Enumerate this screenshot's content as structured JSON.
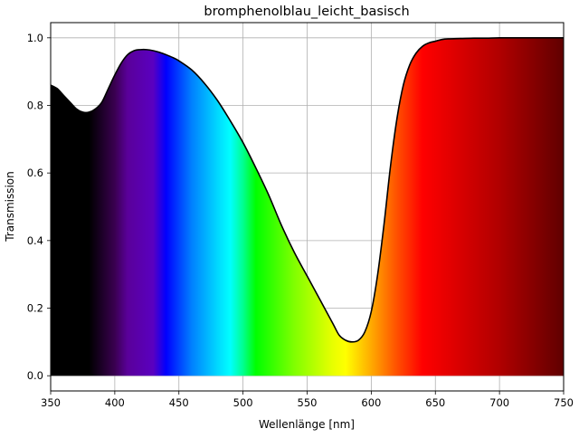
{
  "chart_data": {
    "type": "area",
    "title": "bromphenolblau_leicht_basisch",
    "xlabel": "Wellenlänge [nm]",
    "ylabel": "Transmission",
    "xlim": [
      350,
      750
    ],
    "ylim": [
      -0.045,
      1.045
    ],
    "xticks": [
      350,
      400,
      450,
      500,
      550,
      600,
      650,
      700,
      750
    ],
    "yticks": [
      0.0,
      0.2,
      0.4,
      0.6,
      0.8,
      1.0
    ],
    "xtick_labels": [
      "350",
      "400",
      "450",
      "500",
      "550",
      "600",
      "650",
      "700",
      "750"
    ],
    "ytick_labels": [
      "0.0",
      "0.2",
      "0.4",
      "0.6",
      "0.8",
      "1.0"
    ],
    "grid": true,
    "fill": "visible-spectrum gradient under curve",
    "line_color": "#000000",
    "series": [
      {
        "x": [
          350,
          355,
          360,
          365,
          370,
          375,
          380,
          385,
          390,
          395,
          400,
          405,
          410,
          415,
          420,
          425,
          430,
          435,
          440,
          445,
          450,
          460,
          470,
          480,
          490,
          500,
          510,
          520,
          530,
          540,
          550,
          560,
          570,
          575,
          580,
          585,
          590,
          595,
          600,
          605,
          610,
          615,
          620,
          625,
          630,
          635,
          640,
          645,
          650,
          655,
          660,
          670,
          680,
          690,
          700,
          720,
          750
        ],
        "values": [
          0.86,
          0.85,
          0.83,
          0.81,
          0.79,
          0.78,
          0.78,
          0.79,
          0.81,
          0.85,
          0.89,
          0.925,
          0.95,
          0.962,
          0.965,
          0.965,
          0.962,
          0.957,
          0.95,
          0.942,
          0.932,
          0.905,
          0.865,
          0.815,
          0.755,
          0.69,
          0.615,
          0.535,
          0.445,
          0.365,
          0.295,
          0.225,
          0.155,
          0.12,
          0.105,
          0.1,
          0.105,
          0.13,
          0.19,
          0.3,
          0.45,
          0.62,
          0.76,
          0.86,
          0.92,
          0.955,
          0.975,
          0.985,
          0.99,
          0.995,
          0.997,
          0.998,
          0.999,
          0.999,
          1.0,
          1.0,
          1.0
        ]
      }
    ]
  }
}
